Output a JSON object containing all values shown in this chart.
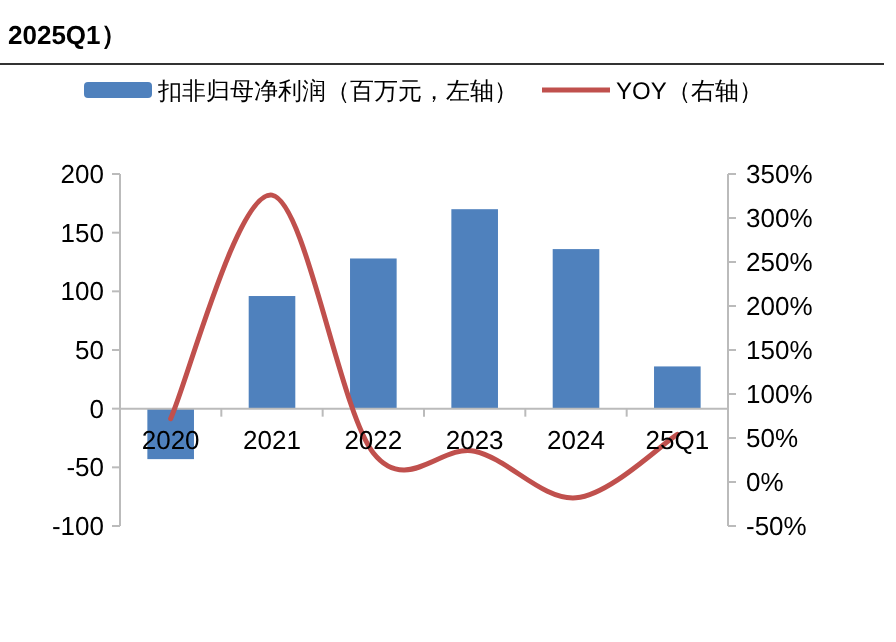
{
  "chart_data": {
    "type": "bar",
    "title": "2025Q1）",
    "categories": [
      "2020",
      "2021",
      "2022",
      "2023",
      "2024",
      "25Q1"
    ],
    "series": [
      {
        "name": "扣非归母净利润（百万元，左轴）",
        "color": "#4f81bd",
        "values": [
          -43,
          96,
          128,
          170,
          136,
          36
        ]
      },
      {
        "name": "YOY（右轴）",
        "type": "line",
        "axis": "y2",
        "color": "#c0504d",
        "values": [
          72,
          326,
          33,
          35,
          -18,
          54
        ]
      }
    ],
    "ylim": [
      -100,
      200
    ],
    "yticks": [
      -100,
      -50,
      0,
      50,
      100,
      150,
      200
    ],
    "y2lim": [
      -50,
      350
    ],
    "y2ticks": [
      {
        "value": -50,
        "label": "-50%"
      },
      {
        "value": 0,
        "label": "0%"
      },
      {
        "value": 50,
        "label": "50%"
      },
      {
        "value": 100,
        "label": "100%"
      },
      {
        "value": 150,
        "label": "150%"
      },
      {
        "value": 200,
        "label": "200%"
      },
      {
        "value": 250,
        "label": "250%"
      },
      {
        "value": 300,
        "label": "300%"
      },
      {
        "value": 350,
        "label": "350%"
      }
    ],
    "legend": "top"
  }
}
